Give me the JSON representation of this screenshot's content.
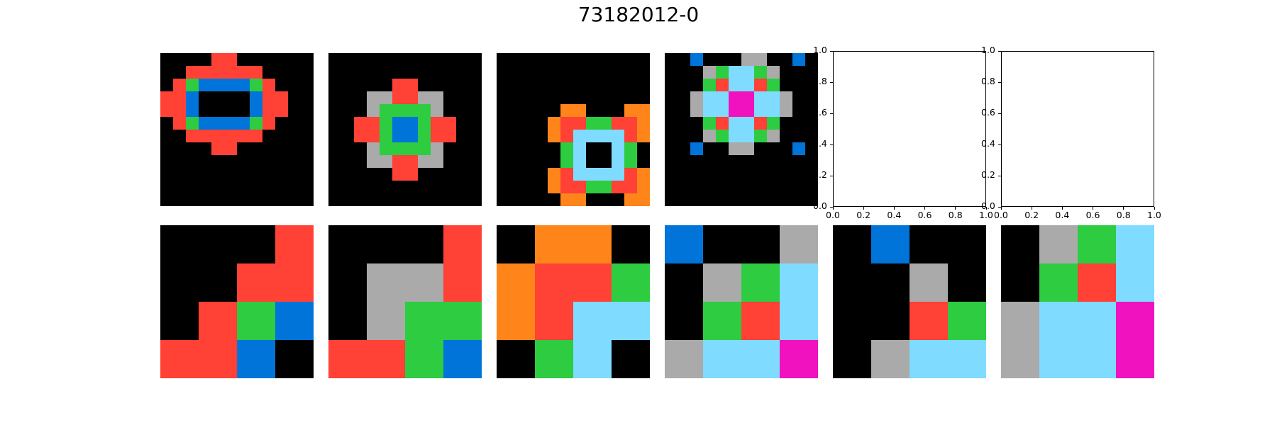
{
  "title": "73182012-0",
  "palette": {
    "0": "#000000",
    "1": "#0074D9",
    "2": "#FF4136",
    "3": "#2ECC40",
    "5": "#AAAAAA",
    "6": "#F012BE",
    "7": "#FF851B",
    "8": "#7FDBFF"
  },
  "empty_axes": {
    "x_ticks": [
      "0.0",
      "0.2",
      "0.4",
      "0.6",
      "0.8",
      "1.0"
    ],
    "y_ticks": [
      "0.0",
      "0.2",
      "0.4",
      "0.6",
      "0.8",
      "1.0"
    ]
  },
  "panels": [
    {
      "row": 0,
      "col": 0,
      "grid": [
        [
          0,
          0,
          0,
          0,
          2,
          2,
          0,
          0,
          0,
          0,
          0,
          0
        ],
        [
          0,
          0,
          2,
          2,
          2,
          2,
          2,
          2,
          0,
          0,
          0,
          0
        ],
        [
          0,
          2,
          3,
          1,
          1,
          1,
          1,
          3,
          2,
          0,
          0,
          0
        ],
        [
          2,
          2,
          1,
          0,
          0,
          0,
          0,
          1,
          2,
          2,
          0,
          0
        ],
        [
          2,
          2,
          1,
          0,
          0,
          0,
          0,
          1,
          2,
          2,
          0,
          0
        ],
        [
          0,
          2,
          3,
          1,
          1,
          1,
          1,
          3,
          2,
          0,
          0,
          0
        ],
        [
          0,
          0,
          2,
          2,
          2,
          2,
          2,
          2,
          0,
          0,
          0,
          0
        ],
        [
          0,
          0,
          0,
          0,
          2,
          2,
          0,
          0,
          0,
          0,
          0,
          0
        ],
        [
          0,
          0,
          0,
          0,
          0,
          0,
          0,
          0,
          0,
          0,
          0,
          0
        ],
        [
          0,
          0,
          0,
          0,
          0,
          0,
          0,
          0,
          0,
          0,
          0,
          0
        ],
        [
          0,
          0,
          0,
          0,
          0,
          0,
          0,
          0,
          0,
          0,
          0,
          0
        ],
        [
          0,
          0,
          0,
          0,
          0,
          0,
          0,
          0,
          0,
          0,
          0,
          0
        ]
      ]
    },
    {
      "row": 0,
      "col": 1,
      "grid": [
        [
          0,
          0,
          0,
          0,
          0,
          0,
          0,
          0,
          0,
          0,
          0,
          0
        ],
        [
          0,
          0,
          0,
          0,
          0,
          0,
          0,
          0,
          0,
          0,
          0,
          0
        ],
        [
          0,
          0,
          0,
          0,
          0,
          2,
          2,
          0,
          0,
          0,
          0,
          0
        ],
        [
          0,
          0,
          0,
          5,
          5,
          2,
          2,
          5,
          5,
          0,
          0,
          0
        ],
        [
          0,
          0,
          0,
          5,
          3,
          3,
          3,
          3,
          5,
          0,
          0,
          0
        ],
        [
          0,
          0,
          2,
          2,
          3,
          1,
          1,
          3,
          2,
          2,
          0,
          0
        ],
        [
          0,
          0,
          2,
          2,
          3,
          1,
          1,
          3,
          2,
          2,
          0,
          0
        ],
        [
          0,
          0,
          0,
          5,
          3,
          3,
          3,
          3,
          5,
          0,
          0,
          0
        ],
        [
          0,
          0,
          0,
          5,
          5,
          2,
          2,
          5,
          5,
          0,
          0,
          0
        ],
        [
          0,
          0,
          0,
          0,
          0,
          2,
          2,
          0,
          0,
          0,
          0,
          0
        ],
        [
          0,
          0,
          0,
          0,
          0,
          0,
          0,
          0,
          0,
          0,
          0,
          0
        ],
        [
          0,
          0,
          0,
          0,
          0,
          0,
          0,
          0,
          0,
          0,
          0,
          0
        ]
      ]
    },
    {
      "row": 0,
      "col": 2,
      "grid": [
        [
          0,
          0,
          0,
          0,
          0,
          0,
          0,
          0,
          0,
          0,
          0,
          0
        ],
        [
          0,
          0,
          0,
          0,
          0,
          0,
          0,
          0,
          0,
          0,
          0,
          0
        ],
        [
          0,
          0,
          0,
          0,
          0,
          0,
          0,
          0,
          0,
          0,
          0,
          0
        ],
        [
          0,
          0,
          0,
          0,
          0,
          0,
          0,
          0,
          0,
          0,
          0,
          0
        ],
        [
          0,
          0,
          0,
          0,
          0,
          7,
          7,
          0,
          0,
          0,
          7,
          7
        ],
        [
          0,
          0,
          0,
          0,
          7,
          2,
          2,
          3,
          3,
          2,
          2,
          7
        ],
        [
          0,
          0,
          0,
          0,
          7,
          2,
          8,
          8,
          8,
          8,
          2,
          7
        ],
        [
          0,
          0,
          0,
          0,
          0,
          3,
          8,
          0,
          0,
          8,
          3,
          0
        ],
        [
          0,
          0,
          0,
          0,
          0,
          3,
          8,
          0,
          0,
          8,
          3,
          0
        ],
        [
          0,
          0,
          0,
          0,
          7,
          2,
          8,
          8,
          8,
          8,
          2,
          7
        ],
        [
          0,
          0,
          0,
          0,
          7,
          2,
          2,
          3,
          3,
          2,
          2,
          7
        ],
        [
          0,
          0,
          0,
          0,
          0,
          7,
          7,
          0,
          0,
          0,
          7,
          7
        ]
      ]
    },
    {
      "row": 0,
      "col": 3,
      "grid": [
        [
          0,
          0,
          1,
          0,
          0,
          0,
          5,
          5,
          0,
          0,
          1,
          0
        ],
        [
          0,
          0,
          0,
          5,
          3,
          8,
          8,
          3,
          5,
          0,
          0,
          0
        ],
        [
          0,
          0,
          0,
          3,
          2,
          8,
          8,
          2,
          3,
          0,
          0,
          0
        ],
        [
          0,
          0,
          5,
          8,
          8,
          6,
          6,
          8,
          8,
          5,
          0,
          0
        ],
        [
          0,
          0,
          5,
          8,
          8,
          6,
          6,
          8,
          8,
          5,
          0,
          0
        ],
        [
          0,
          0,
          0,
          3,
          2,
          8,
          8,
          2,
          3,
          0,
          0,
          0
        ],
        [
          0,
          0,
          0,
          5,
          3,
          8,
          8,
          3,
          5,
          0,
          0,
          0
        ],
        [
          0,
          0,
          1,
          0,
          0,
          5,
          5,
          0,
          0,
          0,
          1,
          0
        ],
        [
          0,
          0,
          0,
          0,
          0,
          0,
          0,
          0,
          0,
          0,
          0,
          0
        ],
        [
          0,
          0,
          0,
          0,
          0,
          0,
          0,
          0,
          0,
          0,
          0,
          0
        ],
        [
          0,
          0,
          0,
          0,
          0,
          0,
          0,
          0,
          0,
          0,
          0,
          0
        ],
        [
          0,
          0,
          0,
          0,
          0,
          0,
          0,
          0,
          0,
          0,
          0,
          0
        ]
      ]
    },
    {
      "row": 1,
      "col": 0,
      "grid": [
        [
          0,
          0,
          0,
          2
        ],
        [
          0,
          0,
          2,
          2
        ],
        [
          0,
          2,
          3,
          1
        ],
        [
          2,
          2,
          1,
          0
        ]
      ]
    },
    {
      "row": 1,
      "col": 1,
      "grid": [
        [
          0,
          0,
          0,
          2
        ],
        [
          0,
          5,
          5,
          2
        ],
        [
          0,
          5,
          3,
          3
        ],
        [
          2,
          2,
          3,
          1
        ]
      ]
    },
    {
      "row": 1,
      "col": 2,
      "grid": [
        [
          0,
          7,
          7,
          0
        ],
        [
          7,
          2,
          2,
          3
        ],
        [
          7,
          2,
          8,
          8
        ],
        [
          0,
          3,
          8,
          0
        ]
      ]
    },
    {
      "row": 1,
      "col": 3,
      "grid": [
        [
          1,
          0,
          0,
          5
        ],
        [
          0,
          5,
          3,
          8
        ],
        [
          0,
          3,
          2,
          8
        ],
        [
          5,
          8,
          8,
          6
        ]
      ]
    },
    {
      "row": 1,
      "col": 4,
      "grid": [
        [
          0,
          1,
          0,
          0
        ],
        [
          0,
          0,
          5,
          0
        ],
        [
          0,
          0,
          2,
          3
        ],
        [
          0,
          5,
          8,
          8
        ]
      ]
    },
    {
      "row": 1,
      "col": 5,
      "grid": [
        [
          0,
          5,
          3,
          8
        ],
        [
          0,
          3,
          2,
          8
        ],
        [
          5,
          8,
          8,
          6
        ],
        [
          5,
          8,
          8,
          6
        ]
      ]
    }
  ]
}
